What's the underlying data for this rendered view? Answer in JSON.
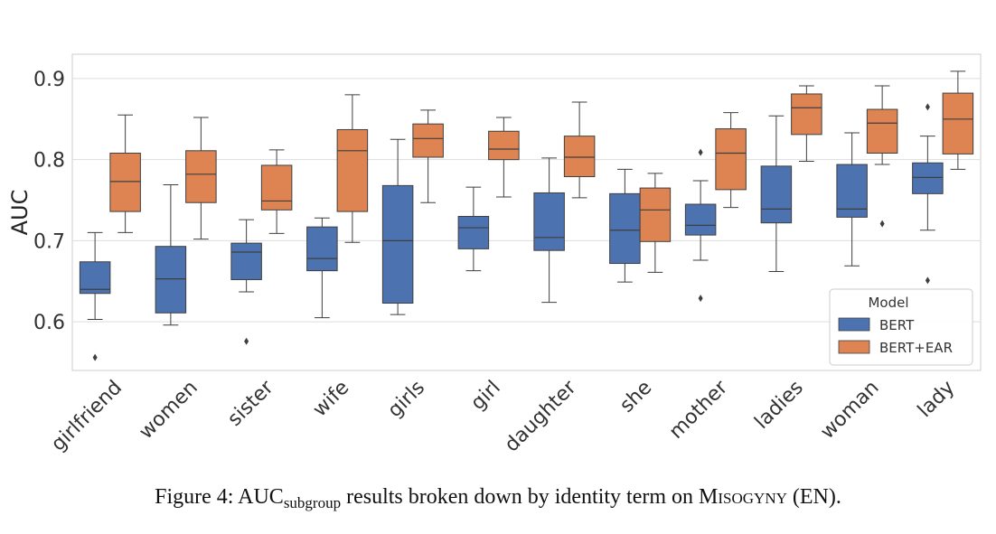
{
  "chart_data": {
    "type": "boxplot",
    "ylabel": "AUC",
    "ylim": [
      0.54,
      0.93
    ],
    "yticks": [
      0.6,
      0.7,
      0.8,
      0.9
    ],
    "grid": true,
    "categories": [
      "girlfriend",
      "women",
      "sister",
      "wife",
      "girls",
      "girl",
      "daughter",
      "she",
      "mother",
      "ladies",
      "woman",
      "lady"
    ],
    "legend": {
      "title": "Model",
      "position": "lower-right"
    },
    "series": [
      {
        "name": "BERT",
        "color": "#4c72b0",
        "boxes": [
          {
            "whislo": 0.603,
            "q1": 0.635,
            "med": 0.64,
            "q3": 0.674,
            "whishi": 0.71,
            "fliers": [
              0.556
            ]
          },
          {
            "whislo": 0.596,
            "q1": 0.611,
            "med": 0.653,
            "q3": 0.693,
            "whishi": 0.769,
            "fliers": []
          },
          {
            "whislo": 0.637,
            "q1": 0.652,
            "med": 0.686,
            "q3": 0.697,
            "whishi": 0.726,
            "fliers": [
              0.576
            ]
          },
          {
            "whislo": 0.605,
            "q1": 0.663,
            "med": 0.678,
            "q3": 0.717,
            "whishi": 0.728,
            "fliers": []
          },
          {
            "whislo": 0.609,
            "q1": 0.623,
            "med": 0.7,
            "q3": 0.768,
            "whishi": 0.825,
            "fliers": []
          },
          {
            "whislo": 0.663,
            "q1": 0.69,
            "med": 0.716,
            "q3": 0.73,
            "whishi": 0.766,
            "fliers": []
          },
          {
            "whislo": 0.624,
            "q1": 0.688,
            "med": 0.704,
            "q3": 0.759,
            "whishi": 0.802,
            "fliers": []
          },
          {
            "whislo": 0.649,
            "q1": 0.672,
            "med": 0.713,
            "q3": 0.758,
            "whishi": 0.788,
            "fliers": []
          },
          {
            "whislo": 0.676,
            "q1": 0.707,
            "med": 0.719,
            "q3": 0.745,
            "whishi": 0.774,
            "fliers": [
              0.629,
              0.809
            ]
          },
          {
            "whislo": 0.662,
            "q1": 0.722,
            "med": 0.739,
            "q3": 0.792,
            "whishi": 0.854,
            "fliers": []
          },
          {
            "whislo": 0.669,
            "q1": 0.729,
            "med": 0.739,
            "q3": 0.794,
            "whishi": 0.833,
            "fliers": []
          },
          {
            "whislo": 0.713,
            "q1": 0.758,
            "med": 0.778,
            "q3": 0.796,
            "whishi": 0.829,
            "fliers": [
              0.651,
              0.865
            ]
          }
        ]
      },
      {
        "name": "BERT+EAR",
        "color": "#dd8452",
        "boxes": [
          {
            "whislo": 0.71,
            "q1": 0.736,
            "med": 0.773,
            "q3": 0.808,
            "whishi": 0.855,
            "fliers": []
          },
          {
            "whislo": 0.702,
            "q1": 0.747,
            "med": 0.782,
            "q3": 0.811,
            "whishi": 0.852,
            "fliers": []
          },
          {
            "whislo": 0.709,
            "q1": 0.738,
            "med": 0.749,
            "q3": 0.793,
            "whishi": 0.812,
            "fliers": []
          },
          {
            "whislo": 0.698,
            "q1": 0.736,
            "med": 0.811,
            "q3": 0.837,
            "whishi": 0.88,
            "fliers": []
          },
          {
            "whislo": 0.747,
            "q1": 0.803,
            "med": 0.826,
            "q3": 0.844,
            "whishi": 0.861,
            "fliers": []
          },
          {
            "whislo": 0.754,
            "q1": 0.8,
            "med": 0.813,
            "q3": 0.835,
            "whishi": 0.852,
            "fliers": []
          },
          {
            "whislo": 0.753,
            "q1": 0.779,
            "med": 0.803,
            "q3": 0.829,
            "whishi": 0.871,
            "fliers": []
          },
          {
            "whislo": 0.661,
            "q1": 0.699,
            "med": 0.738,
            "q3": 0.765,
            "whishi": 0.783,
            "fliers": []
          },
          {
            "whislo": 0.741,
            "q1": 0.763,
            "med": 0.808,
            "q3": 0.838,
            "whishi": 0.858,
            "fliers": []
          },
          {
            "whislo": 0.798,
            "q1": 0.831,
            "med": 0.864,
            "q3": 0.881,
            "whishi": 0.891,
            "fliers": []
          },
          {
            "whislo": 0.794,
            "q1": 0.808,
            "med": 0.845,
            "q3": 0.862,
            "whishi": 0.891,
            "fliers": [
              0.721
            ]
          },
          {
            "whislo": 0.788,
            "q1": 0.807,
            "med": 0.85,
            "q3": 0.882,
            "whishi": 0.909,
            "fliers": []
          }
        ]
      }
    ]
  },
  "caption": {
    "prefix": "Figure 4: AUC",
    "sub": "subgroup",
    "middle": " results broken down by identity term on ",
    "dataset": "Misogyny",
    "suffix": " (EN)."
  }
}
